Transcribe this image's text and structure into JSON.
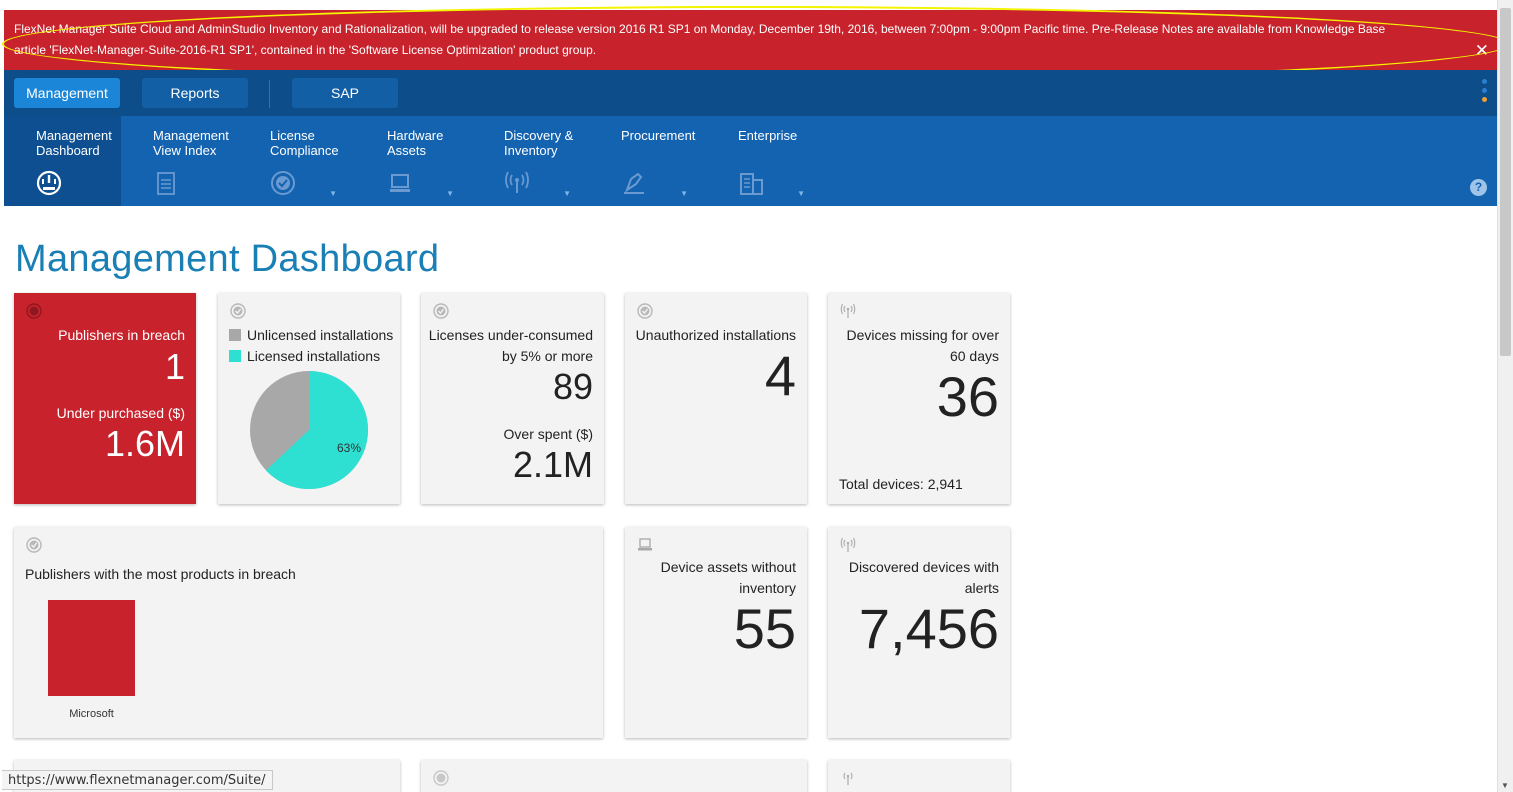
{
  "banner": {
    "line1": "FlexNet Manager Suite Cloud and AdminStudio Inventory and Rationalization, will be upgraded to release version 2016 R1 SP1 on Monday, December 19th, 2016, between 7:00pm - 9:00pm Pacific time. Pre-Release Notes are available from Knowledge Base",
    "line2": "article 'FlexNet-Manager-Suite-2016-R1 SP1', contained in the 'Software License Optimization' product group.",
    "close": "✕"
  },
  "top_tabs": [
    {
      "label": "Management",
      "active": true
    },
    {
      "label": "Reports",
      "active": false
    },
    {
      "label": "SAP",
      "active": false
    }
  ],
  "subnav": {
    "items": [
      {
        "line1": "Management",
        "line2": "Dashboard",
        "icon": "gauge-icon"
      },
      {
        "line1": "Management",
        "line2": "View Index",
        "icon": "document-icon"
      },
      {
        "line1": "License",
        "line2": "Compliance",
        "icon": "check-circle-icon"
      },
      {
        "line1": "Hardware",
        "line2": "Assets",
        "icon": "laptop-icon"
      },
      {
        "line1": "Discovery &",
        "line2": "Inventory",
        "icon": "broadcast-icon"
      },
      {
        "line1": "Procurement",
        "line2": "",
        "icon": "pen-icon"
      },
      {
        "line1": "Enterprise",
        "line2": "",
        "icon": "building-icon"
      }
    ],
    "caret": "▼",
    "help": "?"
  },
  "page_title": "Management Dashboard",
  "cards": {
    "breach": {
      "label1": "Publishers in breach",
      "value1": "1",
      "label2": "Under purchased ($)",
      "value2": "1.6M"
    },
    "installs": {
      "legend": [
        "Unlicensed installations",
        "Licensed installations"
      ],
      "pie_label": "63%",
      "licensed_fraction": 0.63
    },
    "under_consumed": {
      "label1a": "Licenses under-consumed",
      "label1b": "by 5% or more",
      "value1": "89",
      "label2": "Over spent ($)",
      "value2": "2.1M"
    },
    "unauthorized": {
      "label": "Unauthorized installations",
      "value": "4"
    },
    "missing": {
      "label1": "Devices missing for over",
      "label2": "60 days",
      "value": "36",
      "footer": "Total devices: 2,941"
    },
    "publishers": {
      "title": "Publishers with the most products in breach",
      "bar_label": "Microsoft",
      "bar_value": 1
    },
    "no_inventory": {
      "label1": "Device assets without",
      "label2": "inventory",
      "value": "55"
    },
    "alerts": {
      "label1": "Discovered devices with",
      "label2": "alerts",
      "value": "7,456"
    }
  },
  "colors": {
    "banner": "#c8232c",
    "nav_dark": "#0c4d8a",
    "nav": "#1463b0",
    "accent": "#1b86d8",
    "licensed": "#2de0d2",
    "unlicensed": "#a8a8a8",
    "breach_bar": "#c8232c"
  },
  "status_url": "https://www.flexnetmanager.com/Suite/"
}
